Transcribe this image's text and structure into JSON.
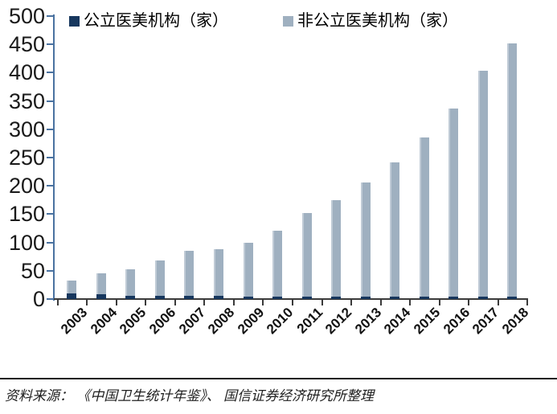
{
  "chart_data": {
    "type": "bar",
    "subtype": "overlapped-columns",
    "title": "",
    "categories": [
      "2003",
      "2004",
      "2005",
      "2006",
      "2007",
      "2008",
      "2009",
      "2010",
      "2011",
      "2012",
      "2013",
      "2014",
      "2015",
      "2016",
      "2017",
      "2018"
    ],
    "series": [
      {
        "name": "公立医美机构（家）",
        "color": "#17375e",
        "values": [
          10,
          8,
          6,
          5,
          5,
          5,
          4,
          4,
          4,
          4,
          4,
          4,
          4,
          4,
          4,
          4
        ]
      },
      {
        "name": "非公立医美机构（家）",
        "color": "#9fb0c0",
        "values": [
          33,
          46,
          52,
          68,
          85,
          88,
          100,
          121,
          152,
          175,
          206,
          241,
          285,
          337,
          403,
          451
        ]
      }
    ],
    "xlabel": "",
    "ylabel": "",
    "ylim": [
      0,
      500
    ],
    "yticks": [
      0,
      50,
      100,
      150,
      200,
      250,
      300,
      350,
      400,
      450,
      500
    ],
    "grid": false,
    "legend_position": "top",
    "axis_color": "#4a72a0",
    "baseline_color": "#3a3a3a",
    "tick_label_color": "#1a1a1a"
  },
  "footer": {
    "source_text": "资料来源：  《中国卫生统计年鉴》、 国信证券经济研究所整理"
  }
}
